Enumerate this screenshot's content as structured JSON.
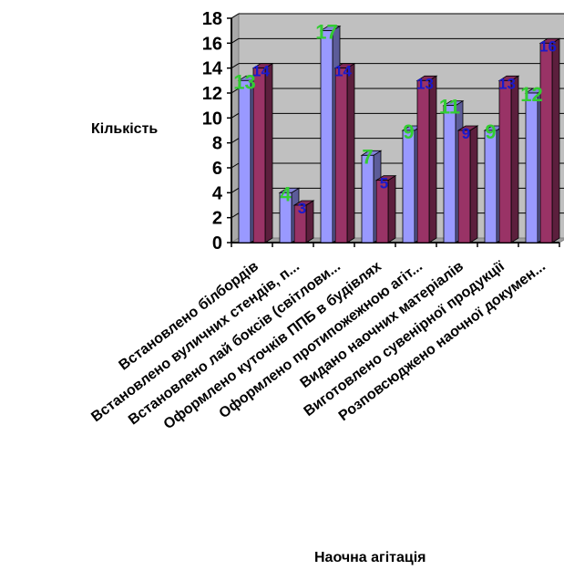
{
  "chart_data": {
    "type": "bar",
    "xlabel": "Наочна агітація",
    "ylabel": "Кількість",
    "ylim": [
      0,
      18
    ],
    "ystep": 2,
    "grid": true,
    "legend": "none",
    "categories": [
      "Встановлено білбордів",
      "Встановлено вуличних стендів, п...",
      "Встановлено лай боксів (світлови...",
      "Оформлено куточків ППБ в будівлях",
      "Оформлено протипожежною агіт...",
      "Видано наочних матеріалів",
      "Виготовлено сувенірної продукції",
      "Розповсюджено наочної докумен..."
    ],
    "series": [
      {
        "values": [
          13,
          4,
          17,
          7,
          9,
          11,
          9,
          12
        ],
        "color": "#9999ff",
        "label_color": "#33cc33"
      },
      {
        "values": [
          14,
          3,
          14,
          5,
          13,
          9,
          13,
          16
        ],
        "color": "#993366",
        "label_color": "#1a1acc"
      }
    ],
    "plot_background": "#c0c0c0"
  }
}
